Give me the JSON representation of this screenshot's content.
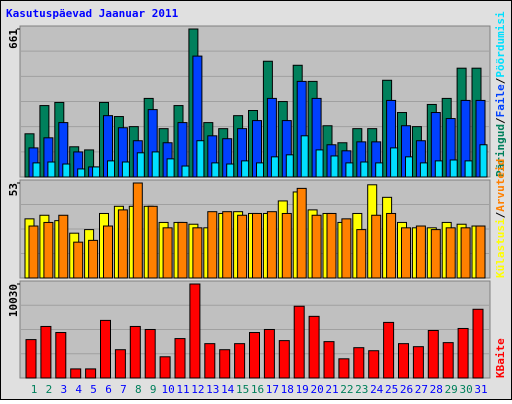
{
  "chart_data": [
    {
      "type": "bar",
      "title": "Kasutuspäevad Jaanuar 2011",
      "ylim": [
        0,
        661
      ],
      "yticks": [
        661
      ],
      "legend_separator": "/",
      "series": [
        {
          "name": "Päringud",
          "color": "#00805c",
          "values": [
            193,
            319,
            333,
            135,
            121,
            333,
            270,
            225,
            351,
            216,
            319,
            661,
            243,
            216,
            274,
            297,
            517,
            337,
            499,
            427,
            229,
            153,
            216,
            216,
            432,
            288,
            225,
            324,
            351,
            486,
            486
          ]
        },
        {
          "name": "Faile",
          "color": "#0040ff",
          "values": [
            130,
            175,
            243,
            112,
            45,
            274,
            220,
            162,
            301,
            153,
            243,
            540,
            184,
            171,
            216,
            252,
            351,
            252,
            427,
            351,
            144,
            117,
            157,
            157,
            342,
            229,
            162,
            288,
            261,
            342,
            342
          ]
        },
        {
          "name": "Pöördumisi",
          "color": "#00e0ff",
          "values": [
            63,
            67,
            58,
            36,
            45,
            72,
            67,
            108,
            112,
            81,
            49,
            162,
            63,
            58,
            72,
            63,
            90,
            99,
            184,
            121,
            94,
            63,
            67,
            63,
            130,
            90,
            63,
            72,
            76,
            72,
            144
          ]
        }
      ]
    },
    {
      "type": "bar",
      "ylim": [
        0,
        53
      ],
      "yticks": [
        53
      ],
      "legend_separator": "/",
      "series": [
        {
          "name": "Külastusi",
          "color": "#ffff00",
          "values": [
            33,
            35,
            32,
            25,
            27,
            36,
            40,
            40,
            40,
            31,
            31,
            30,
            28,
            36,
            37,
            36,
            36,
            43,
            48,
            38,
            36,
            31,
            36,
            52,
            45,
            31,
            28,
            28,
            31,
            30,
            29
          ]
        },
        {
          "name": "Arvuteid",
          "color": "#ff8000",
          "values": [
            29,
            31,
            35,
            20,
            21,
            29,
            38,
            53,
            40,
            28,
            31,
            28,
            37,
            37,
            35,
            36,
            37,
            36,
            50,
            35,
            36,
            33,
            27,
            35,
            36,
            28,
            29,
            27,
            28,
            28,
            29
          ]
        }
      ]
    },
    {
      "type": "bar",
      "ylim": [
        0,
        10030
      ],
      "yticks": [
        10030
      ],
      "categories": [
        "1",
        "2",
        "3",
        "4",
        "5",
        "6",
        "7",
        "8",
        "9",
        "10",
        "11",
        "12",
        "13",
        "14",
        "15",
        "16",
        "17",
        "18",
        "19",
        "20",
        "21",
        "22",
        "23",
        "24",
        "25",
        "26",
        "27",
        "28",
        "29",
        "30",
        "31"
      ],
      "category_label_colors": [
        "#00805c",
        "#00805c",
        "#0000ff",
        "#0000ff",
        "#0000ff",
        "#0000ff",
        "#0000ff",
        "#00805c",
        "#00805c",
        "#0000ff",
        "#0000ff",
        "#0000ff",
        "#0000ff",
        "#0000ff",
        "#00805c",
        "#00805c",
        "#0000ff",
        "#0000ff",
        "#0000ff",
        "#0000ff",
        "#0000ff",
        "#00805c",
        "#00805c",
        "#0000ff",
        "#0000ff",
        "#0000ff",
        "#0000ff",
        "#0000ff",
        "#00805c",
        "#00805c",
        "#0000ff"
      ],
      "series": [
        {
          "name": "KBaite",
          "color": "#ff0000",
          "values": [
            4098,
            5500,
            4853,
            971,
            971,
            6147,
            3020,
            5500,
            5177,
            2265,
            4206,
            10030,
            3667,
            3020,
            3667,
            4853,
            5177,
            3990,
            7657,
            6579,
            3882,
            2049,
            3236,
            2912,
            5932,
            3667,
            3344,
            5069,
            3775,
            5285,
            7334
          ]
        }
      ]
    }
  ]
}
